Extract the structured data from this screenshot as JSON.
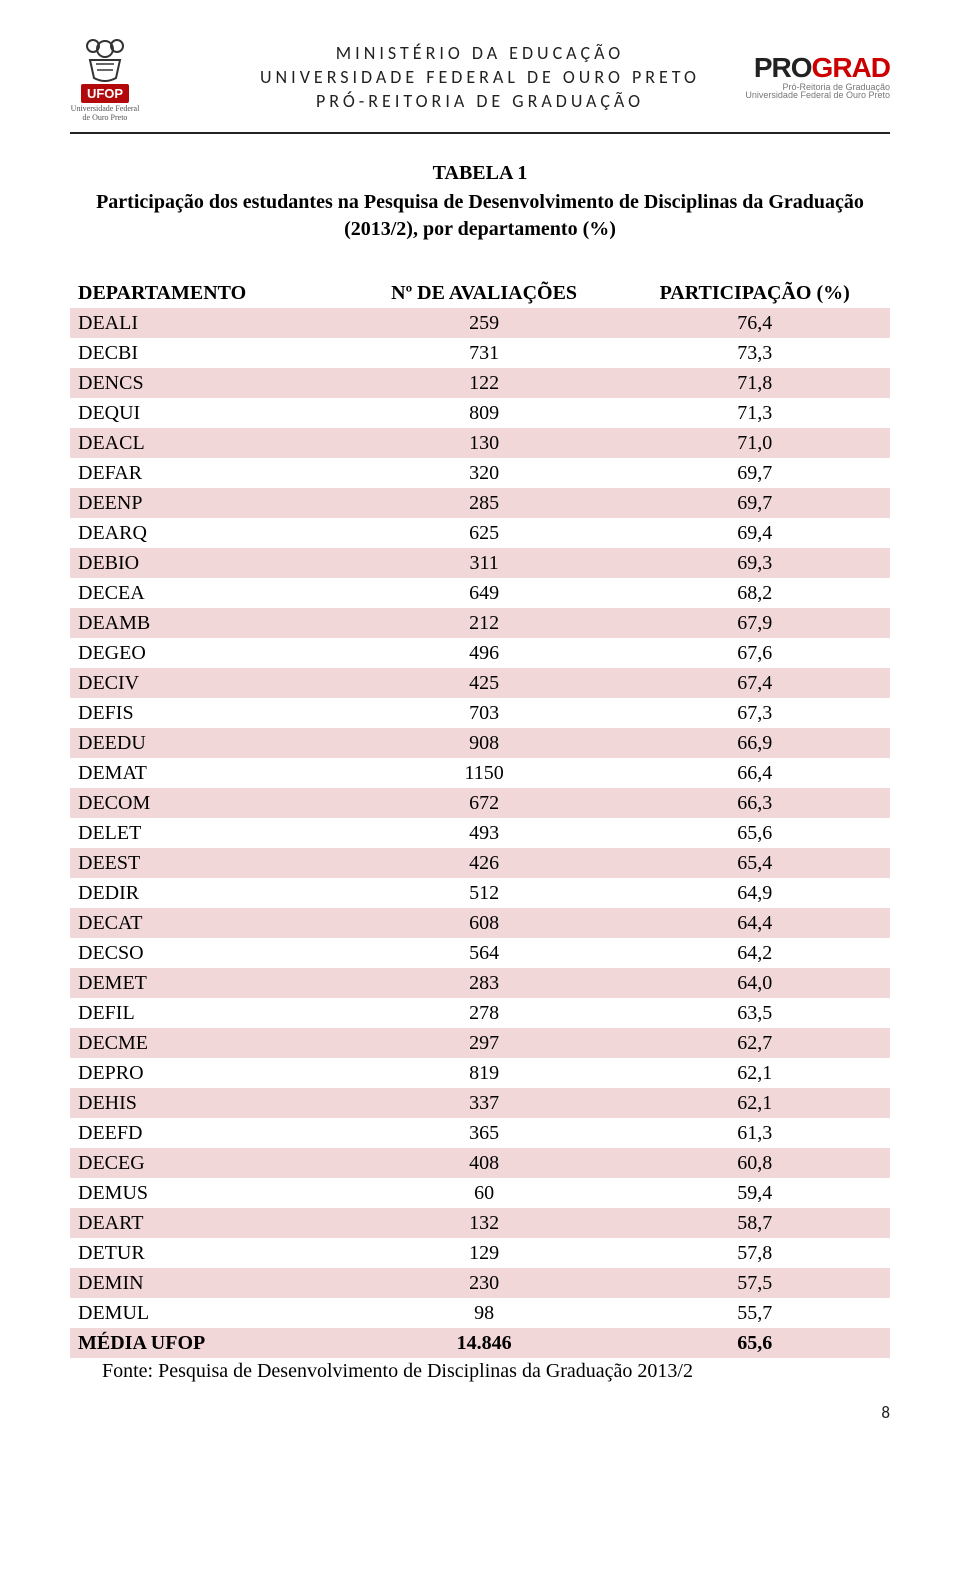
{
  "header": {
    "line1": "MINISTÉRIO DA EDUCAÇÃO",
    "line2": "UNIVERSIDADE FEDERAL DE OURO PRETO",
    "line3": "PRÓ-REITORIA DE GRADUAÇÃO",
    "logo_left_badge": "UFOP",
    "logo_left_caption": "Universidade Federal de Ouro Preto",
    "logo_right_pro": "PRO",
    "logo_right_grad": "GRAD",
    "logo_right_sub1": "Pró-Reitoria de Graduação",
    "logo_right_sub2": "Universidade Federal de Ouro Preto"
  },
  "title": {
    "main": "TABELA 1",
    "subtitle": "Participação dos estudantes na Pesquisa de Desenvolvimento de Disciplinas da Graduação",
    "period": "(2013/2), por departamento (%)"
  },
  "table": {
    "columns": [
      "DEPARTAMENTO",
      "Nº DE AVALIAÇÕES",
      "PARTICIPAÇÃO (%)"
    ],
    "rows": [
      [
        "DEALI",
        "259",
        "76,4"
      ],
      [
        "DECBI",
        "731",
        "73,3"
      ],
      [
        "DENCS",
        "122",
        "71,8"
      ],
      [
        "DEQUI",
        "809",
        "71,3"
      ],
      [
        "DEACL",
        "130",
        "71,0"
      ],
      [
        "DEFAR",
        "320",
        "69,7"
      ],
      [
        "DEENP",
        "285",
        "69,7"
      ],
      [
        "DEARQ",
        "625",
        "69,4"
      ],
      [
        "DEBIO",
        "311",
        "69,3"
      ],
      [
        "DECEA",
        "649",
        "68,2"
      ],
      [
        "DEAMB",
        "212",
        "67,9"
      ],
      [
        "DEGEO",
        "496",
        "67,6"
      ],
      [
        "DECIV",
        "425",
        "67,4"
      ],
      [
        "DEFIS",
        "703",
        "67,3"
      ],
      [
        "DEEDU",
        "908",
        "66,9"
      ],
      [
        "DEMAT",
        "1150",
        "66,4"
      ],
      [
        "DECOM",
        "672",
        "66,3"
      ],
      [
        "DELET",
        "493",
        "65,6"
      ],
      [
        "DEEST",
        "426",
        "65,4"
      ],
      [
        "DEDIR",
        "512",
        "64,9"
      ],
      [
        "DECAT",
        "608",
        "64,4"
      ],
      [
        "DECSO",
        "564",
        "64,2"
      ],
      [
        "DEMET",
        "283",
        "64,0"
      ],
      [
        "DEFIL",
        "278",
        "63,5"
      ],
      [
        "DECME",
        "297",
        "62,7"
      ],
      [
        "DEPRO",
        "819",
        "62,1"
      ],
      [
        "DEHIS",
        "337",
        "62,1"
      ],
      [
        "DEEFD",
        "365",
        "61,3"
      ],
      [
        "DECEG",
        "408",
        "60,8"
      ],
      [
        "DEMUS",
        "60",
        "59,4"
      ],
      [
        "DEART",
        "132",
        "58,7"
      ],
      [
        "DETUR",
        "129",
        "57,8"
      ],
      [
        "DEMIN",
        "230",
        "57,5"
      ],
      [
        "DEMUL",
        "98",
        "55,7"
      ]
    ],
    "footer": [
      "MÉDIA UFOP",
      "14.846",
      "65,6"
    ],
    "stripe_color_odd": "#f2d7d8",
    "stripe_color_even": "#ffffff"
  },
  "source": "Fonte: Pesquisa de Desenvolvimento de Disciplinas da Graduação 2013/2",
  "page_number": "8"
}
